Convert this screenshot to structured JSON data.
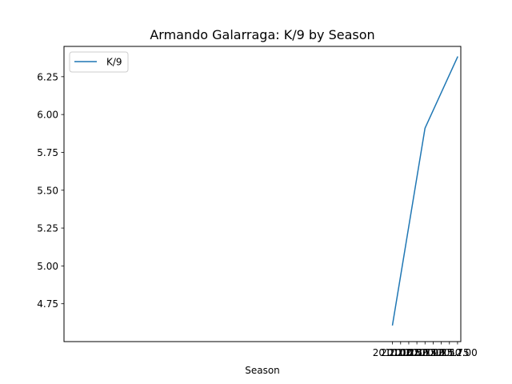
{
  "chart_data": {
    "type": "line",
    "title": "Armando Galarraga: K/9 by Season",
    "xlabel": "Season",
    "ylabel": "",
    "xlim": [
      1999.9,
      2012.1
    ],
    "ylim": [
      4.5,
      6.45
    ],
    "xticks": [
      2010.0,
      2010.25,
      2010.5,
      2010.75,
      2011.0,
      2011.25,
      2011.5,
      2011.75,
      2012.0
    ],
    "xtick_labels": [
      "2010.00",
      "2010.25",
      "2010.50",
      "2010.75",
      "2011.00",
      "2011.25",
      "2011.50",
      "2011.75",
      "2012.00"
    ],
    "yticks": [
      4.75,
      5.0,
      5.25,
      5.5,
      5.75,
      6.0,
      6.25
    ],
    "ytick_labels": [
      "4.75",
      "5.00",
      "5.25",
      "5.50",
      "5.75",
      "6.00",
      "6.25"
    ],
    "series": [
      {
        "name": "K/9",
        "color": "#1f77b4",
        "x": [
          2010,
          2011,
          2012
        ],
        "y": [
          4.61,
          5.91,
          6.38
        ]
      }
    ],
    "legend": {
      "placement": "upper-left",
      "entries": [
        "K/9"
      ]
    },
    "grid": false
  }
}
